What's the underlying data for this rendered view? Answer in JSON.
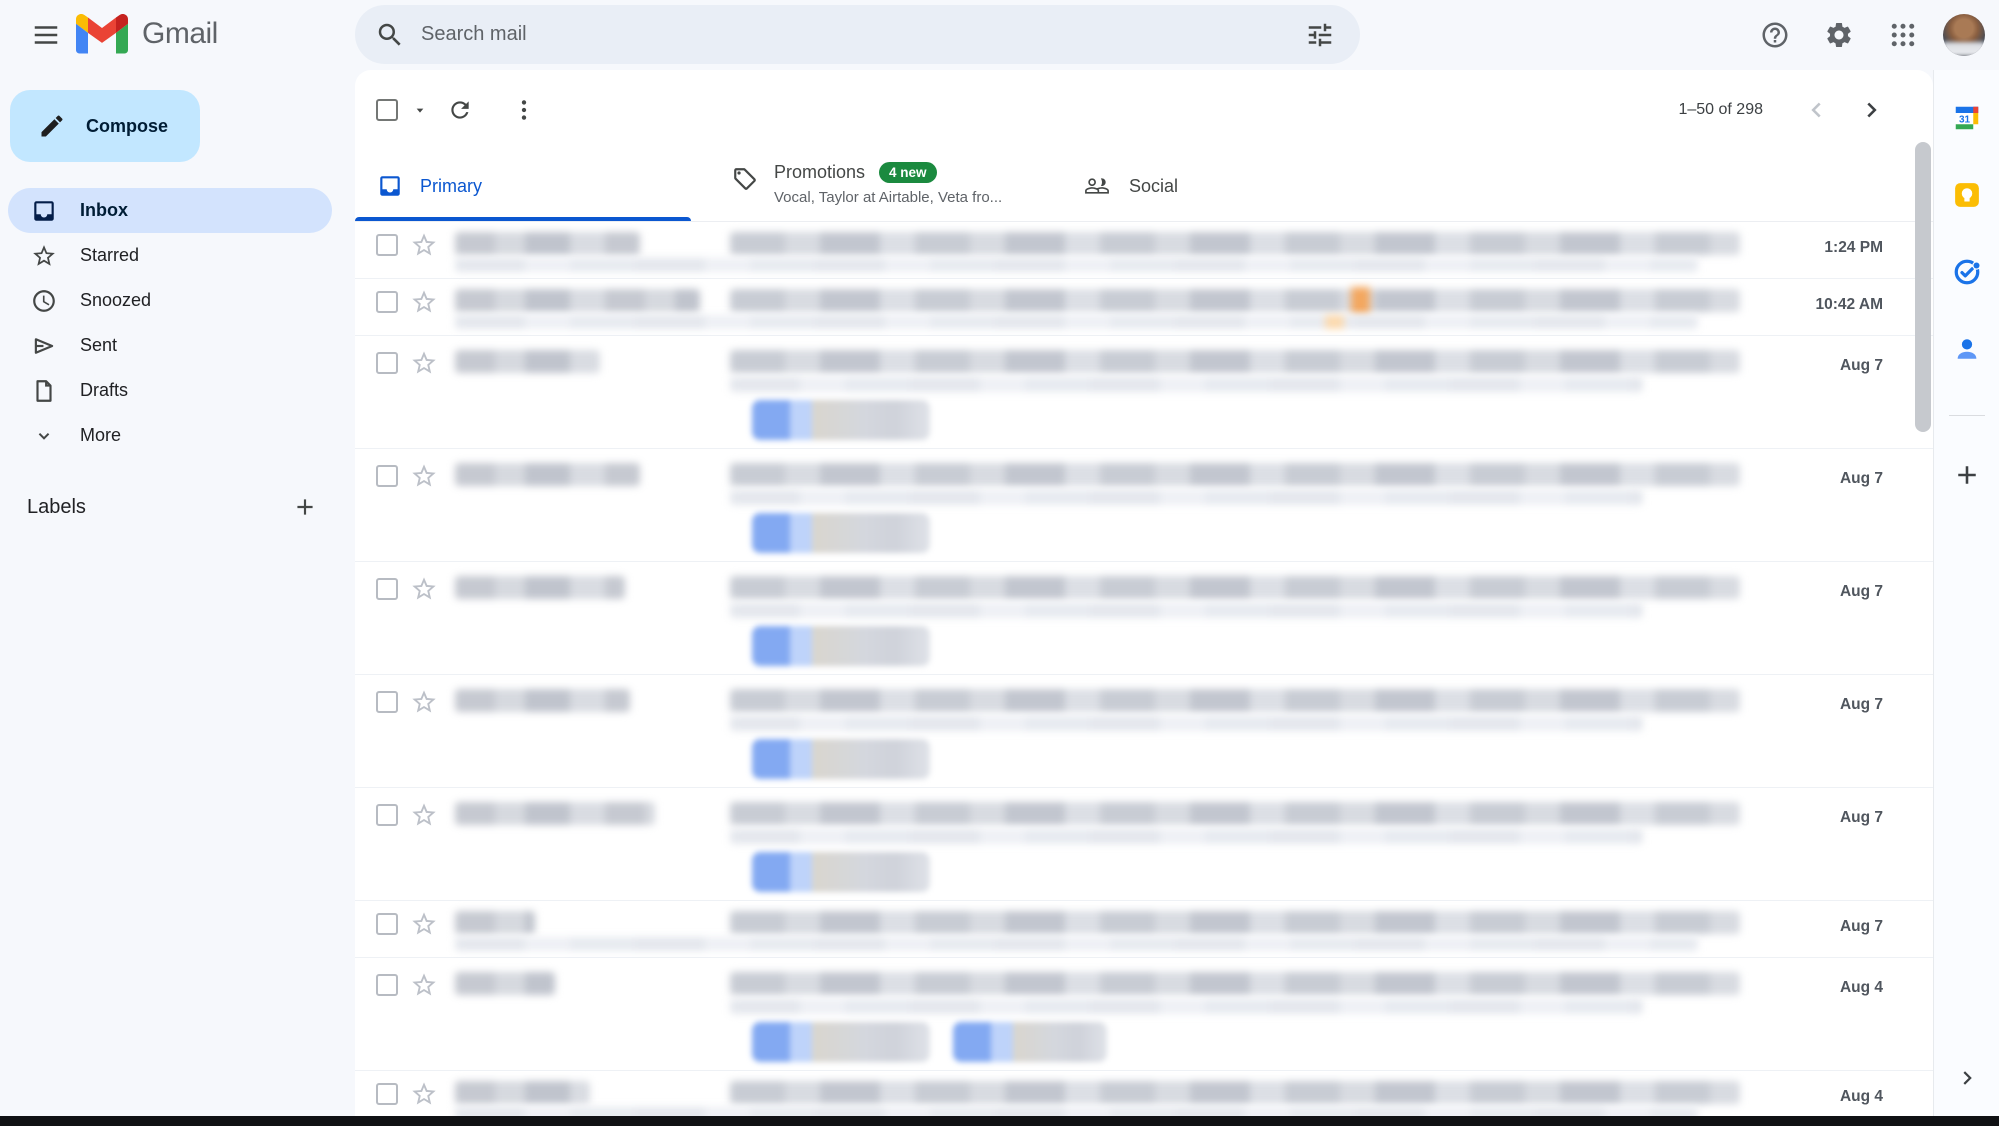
{
  "topbar": {
    "brand": "Gmail",
    "search": {
      "placeholder": "Search mail"
    }
  },
  "sidebar": {
    "compose_label": "Compose",
    "items": [
      {
        "label": "Inbox",
        "icon": "inbox-icon",
        "active": true
      },
      {
        "label": "Starred",
        "icon": "star-icon",
        "active": false
      },
      {
        "label": "Snoozed",
        "icon": "clock-icon",
        "active": false
      },
      {
        "label": "Sent",
        "icon": "send-icon",
        "active": false
      },
      {
        "label": "Drafts",
        "icon": "draft-icon",
        "active": false
      },
      {
        "label": "More",
        "icon": "chevron-down-icon",
        "active": false
      }
    ],
    "labels_heading": "Labels"
  },
  "toolbar": {
    "range": "1–50 of 298"
  },
  "tabs": [
    {
      "label": "Primary",
      "active": true
    },
    {
      "label": "Promotions",
      "badge": "4 new",
      "subtitle": "Vocal, Taylor at Airtable, Veta fro...",
      "active": false
    },
    {
      "label": "Social",
      "active": false
    }
  ],
  "list": {
    "rows": [
      {
        "date": "1:24 PM",
        "size": "single",
        "sender_w": 185,
        "chips": 0,
        "accent": null,
        "cut": false
      },
      {
        "date": "10:42 AM",
        "size": "single",
        "sender_w": 245,
        "chips": 0,
        "accent": "orange",
        "cut": false
      },
      {
        "date": "Aug 7",
        "size": "tall",
        "sender_w": 145,
        "chips": 1,
        "accent": null,
        "cut": false
      },
      {
        "date": "Aug 7",
        "size": "tall",
        "sender_w": 185,
        "chips": 1,
        "accent": null,
        "cut": false
      },
      {
        "date": "Aug 7",
        "size": "tall",
        "sender_w": 170,
        "chips": 1,
        "accent": null,
        "cut": false
      },
      {
        "date": "Aug 7",
        "size": "tall",
        "sender_w": 175,
        "chips": 1,
        "accent": null,
        "cut": false
      },
      {
        "date": "Aug 7",
        "size": "tall",
        "sender_w": 200,
        "chips": 1,
        "accent": null,
        "cut": false
      },
      {
        "date": "Aug 7",
        "size": "single",
        "sender_w": 80,
        "chips": 0,
        "accent": null,
        "cut": false
      },
      {
        "date": "Aug 4",
        "size": "tall",
        "sender_w": 100,
        "chips": 2,
        "accent": null,
        "cut": false
      },
      {
        "date": "Aug 4",
        "size": "single",
        "sender_w": 135,
        "chips": 0,
        "accent": null,
        "cut": true
      }
    ]
  },
  "sidepanel": {
    "icons": [
      "calendar-icon",
      "keep-icon",
      "tasks-icon",
      "contacts-icon",
      "plus-icon",
      "chevron-right-icon"
    ]
  },
  "colors": {
    "app_bg": "#f6f8fc",
    "search_bg": "#e9eef6",
    "accent_blue": "#0b57d0",
    "compose_bg": "#c2e7ff",
    "active_item_bg": "#d3e3fd",
    "badge_green": "#1b8a3f",
    "chip_blue": "#83a9f2",
    "accent_orange": "#f3a75f"
  }
}
